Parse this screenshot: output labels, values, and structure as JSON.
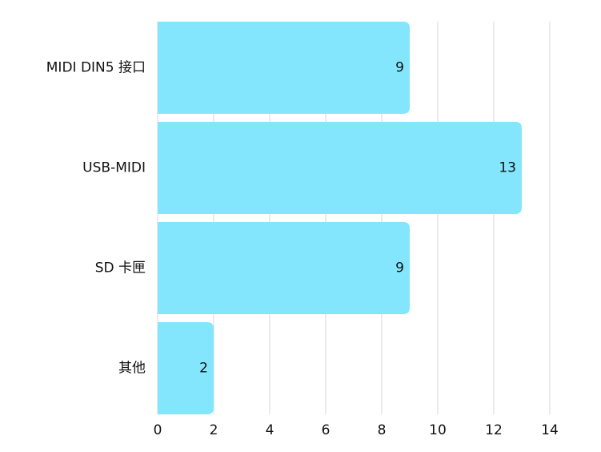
{
  "chart_data": {
    "type": "bar",
    "orientation": "horizontal",
    "categories": [
      "MIDI DIN5 接口",
      "USB-MIDI",
      "SD 卡匣",
      "其他"
    ],
    "values": [
      9,
      13,
      9,
      2
    ],
    "color": "#84e6fc",
    "xlim": [
      0,
      14
    ],
    "xticks": [
      0,
      2,
      4,
      6,
      8,
      10,
      12,
      14
    ],
    "grid": true
  }
}
